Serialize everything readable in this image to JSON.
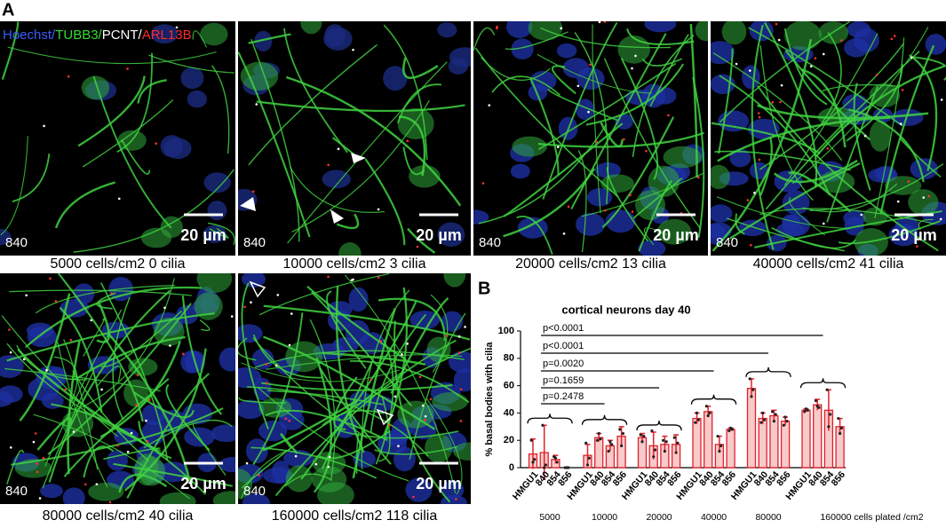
{
  "panel_labels": [
    "A",
    "B"
  ],
  "channel_legend": [
    {
      "text": "Hoechst/",
      "color": "#3a5cff"
    },
    {
      "text": "TUBB3/",
      "color": "#33dd33"
    },
    {
      "text": "PCNT/",
      "color": "#ffffff"
    },
    {
      "text": "ARL13B",
      "color": "#ff2a2a"
    }
  ],
  "images": [
    {
      "sample": "840",
      "scale_bar": "20 µm",
      "caption": "5000 cells/cm2   0 cilia"
    },
    {
      "sample": "840",
      "scale_bar": "20 µm",
      "caption": "10000 cells/cm2   3 cilia"
    },
    {
      "sample": "840",
      "scale_bar": "20 µm",
      "caption": "20000 cells/cm2   13 cilia"
    },
    {
      "sample": "840",
      "scale_bar": "20 µm",
      "caption": "40000 cells/cm2   41 cilia"
    },
    {
      "sample": "840",
      "scale_bar": "20 µm",
      "caption": "80000 cells/cm2   40 cilia"
    },
    {
      "sample": "840",
      "scale_bar": "20 µm",
      "caption": "160000 cells/cm2 118 cilia"
    }
  ],
  "chart_data": {
    "type": "grouped-bar",
    "title": "cortical neurons day 40",
    "y_label": "% basal bodies with cilia",
    "ylim": [
      0,
      100
    ],
    "yticks": [
      0,
      20,
      40,
      60,
      80,
      100
    ],
    "groups": [
      "5000",
      "10000",
      "20000",
      "40000",
      "80000",
      "160000 cells plated /cm2"
    ],
    "lines": [
      "HMGU1",
      "840",
      "854",
      "856"
    ],
    "color": "#e0202a",
    "fill": "#f8caca",
    "values": [
      [
        10,
        11,
        6,
        0
      ],
      [
        9,
        22,
        16,
        23
      ],
      [
        22,
        16,
        17,
        17
      ],
      [
        36,
        41,
        17,
        28
      ],
      [
        58,
        36,
        38,
        34
      ],
      [
        42,
        46,
        42,
        30
      ]
    ],
    "errors": [
      [
        11,
        20,
        3,
        0
      ],
      [
        8,
        3,
        4,
        7
      ],
      [
        3,
        10,
        6,
        7
      ],
      [
        4,
        4,
        6,
        1
      ],
      [
        7,
        4,
        4,
        3
      ],
      [
        1,
        4,
        15,
        6
      ]
    ],
    "points": [
      [
        [
          20,
          4,
          6
        ],
        [
          31,
          0,
          2
        ],
        [
          8,
          7,
          4
        ],
        [
          0,
          0,
          0
        ]
      ],
      [
        [
          18,
          2,
          7
        ],
        [
          20,
          25,
          21
        ],
        [
          12,
          19,
          17
        ],
        [
          28,
          16,
          25
        ]
      ],
      [
        [
          24,
          19,
          23
        ],
        [
          27,
          8,
          13
        ],
        [
          20,
          12,
          19
        ],
        [
          22,
          11,
          18
        ]
      ],
      [
        [
          33,
          40,
          35
        ],
        [
          45,
          38,
          40
        ],
        [
          23,
          12,
          16
        ],
        [
          27,
          29,
          28
        ]
      ],
      [
        [
          65,
          52,
          57
        ],
        [
          33,
          40,
          35
        ],
        [
          41,
          34,
          39
        ],
        [
          31,
          37,
          34
        ]
      ],
      [
        [
          41,
          43,
          42
        ],
        [
          49,
          45,
          44
        ],
        [
          57,
          30,
          39
        ],
        [
          36,
          25,
          29
        ]
      ]
    ],
    "comparisons": [
      "p=0.2478",
      "p=0.1659",
      "p=0.0020",
      "p<0.0001",
      "p<0.0001"
    ]
  }
}
